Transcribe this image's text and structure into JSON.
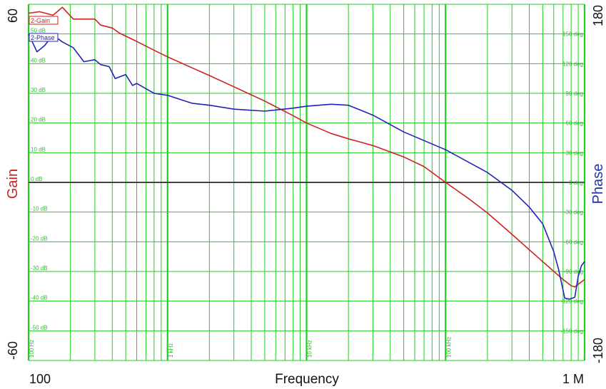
{
  "chart_data": {
    "type": "line",
    "title": "",
    "xlabel": "Frequency",
    "ylabel_left": "Gain",
    "ylabel_right": "Phase",
    "x_scale": "log",
    "xlim": [
      100,
      1000000
    ],
    "ylim_left": [
      -60,
      60
    ],
    "ylim_right": [
      -180,
      180
    ],
    "grid": true,
    "x_tick_labels": [
      {
        "x": 100,
        "label": "100"
      },
      {
        "x": 1000000,
        "label": "1 M"
      }
    ],
    "y_left_tick_labels": [
      {
        "y": 60,
        "label": "60"
      },
      {
        "y": -60,
        "label": "-60"
      }
    ],
    "y_right_tick_labels": [
      {
        "y": 180,
        "label": "180"
      },
      {
        "y": -180,
        "label": "-180"
      }
    ],
    "inner_gain_ticks": [
      {
        "y": 50,
        "label": "50 dB"
      },
      {
        "y": 40,
        "label": "40 dB"
      },
      {
        "y": 30,
        "label": "30 dB"
      },
      {
        "y": 20,
        "label": "20 dB"
      },
      {
        "y": 10,
        "label": "10 dB"
      },
      {
        "y": 0,
        "label": "0 dB"
      },
      {
        "y": -10,
        "label": "-10 dB"
      },
      {
        "y": -20,
        "label": "-20 dB"
      },
      {
        "y": -30,
        "label": "-30 dB"
      },
      {
        "y": -40,
        "label": "-40 dB"
      },
      {
        "y": -50,
        "label": "-50 dB"
      }
    ],
    "inner_phase_ticks": [
      {
        "y": 150,
        "label": "150 deg"
      },
      {
        "y": 120,
        "label": "120 deg"
      },
      {
        "y": 90,
        "label": "90 deg"
      },
      {
        "y": 60,
        "label": "60 deg"
      },
      {
        "y": 30,
        "label": "30 deg"
      },
      {
        "y": 0,
        "label": "0 deg"
      },
      {
        "y": -30,
        "label": "-30 deg"
      },
      {
        "y": -60,
        "label": "-60 deg"
      },
      {
        "y": -90,
        "label": "-90 deg"
      },
      {
        "y": -120,
        "label": "-120 deg"
      },
      {
        "y": -150,
        "label": "-150 deg"
      }
    ],
    "inner_freq_labels": [
      {
        "x": 100,
        "label": "100 Hz"
      },
      {
        "x": 1000,
        "label": "1 kHz"
      },
      {
        "x": 10000,
        "label": "10 kHz"
      },
      {
        "x": 100000,
        "label": "100 kHz"
      }
    ],
    "series": [
      {
        "name": "2-Gain",
        "axis": "left",
        "color": "#cc2222",
        "points": [
          [
            100,
            57
          ],
          [
            120,
            57.5
          ],
          [
            150,
            56.3
          ],
          [
            175,
            59
          ],
          [
            210,
            55
          ],
          [
            250,
            55
          ],
          [
            300,
            55
          ],
          [
            330,
            53
          ],
          [
            400,
            52
          ],
          [
            450,
            50.3
          ],
          [
            600,
            47.5
          ],
          [
            800,
            44.5
          ],
          [
            1000,
            42.3
          ],
          [
            1500,
            38.6
          ],
          [
            2000,
            36
          ],
          [
            3000,
            32.2
          ],
          [
            4000,
            29.5
          ],
          [
            5000,
            27.4
          ],
          [
            6000,
            25.5
          ],
          [
            8000,
            22.5
          ],
          [
            10000,
            20
          ],
          [
            15000,
            16.5
          ],
          [
            20000,
            14.7
          ],
          [
            30000,
            12.4
          ],
          [
            50000,
            8.6
          ],
          [
            70000,
            5.3
          ],
          [
            100000,
            0
          ],
          [
            150000,
            -5.8
          ],
          [
            200000,
            -10.3
          ],
          [
            300000,
            -17.5
          ],
          [
            500000,
            -26.7
          ],
          [
            700000,
            -32.7
          ],
          [
            800000,
            -34.8
          ],
          [
            850000,
            -35.2
          ],
          [
            1000000,
            -32.7
          ]
        ]
      },
      {
        "name": "2-Phase",
        "axis": "right",
        "color": "#2222bb",
        "points": [
          [
            100,
            150
          ],
          [
            115,
            132
          ],
          [
            130,
            138
          ],
          [
            150,
            149
          ],
          [
            175,
            142
          ],
          [
            210,
            136
          ],
          [
            250,
            122
          ],
          [
            300,
            124
          ],
          [
            330,
            119
          ],
          [
            380,
            117
          ],
          [
            420,
            105
          ],
          [
            500,
            109
          ],
          [
            560,
            98
          ],
          [
            600,
            100
          ],
          [
            800,
            90
          ],
          [
            1000,
            88
          ],
          [
            1500,
            80
          ],
          [
            2000,
            78
          ],
          [
            3000,
            74
          ],
          [
            5000,
            72
          ],
          [
            8000,
            75
          ],
          [
            10000,
            77
          ],
          [
            15000,
            79
          ],
          [
            20000,
            78
          ],
          [
            30000,
            68
          ],
          [
            50000,
            51
          ],
          [
            100000,
            33
          ],
          [
            200000,
            10
          ],
          [
            300000,
            -8
          ],
          [
            400000,
            -25
          ],
          [
            500000,
            -42
          ],
          [
            600000,
            -70
          ],
          [
            650000,
            -88
          ],
          [
            720000,
            -117
          ],
          [
            780000,
            -118
          ],
          [
            850000,
            -116
          ],
          [
            900000,
            -95
          ],
          [
            950000,
            -84
          ],
          [
            1000000,
            -80
          ]
        ]
      }
    ],
    "legend": {
      "placement": "top-left",
      "entries": [
        "2-Gain",
        "2-Phase"
      ]
    }
  },
  "colors": {
    "grid": "#22cc22",
    "zero_line": "#444444",
    "gain_axis_label": "#cc2222",
    "phase_axis_label": "#2233aa",
    "inner_label": "#33bb33"
  }
}
